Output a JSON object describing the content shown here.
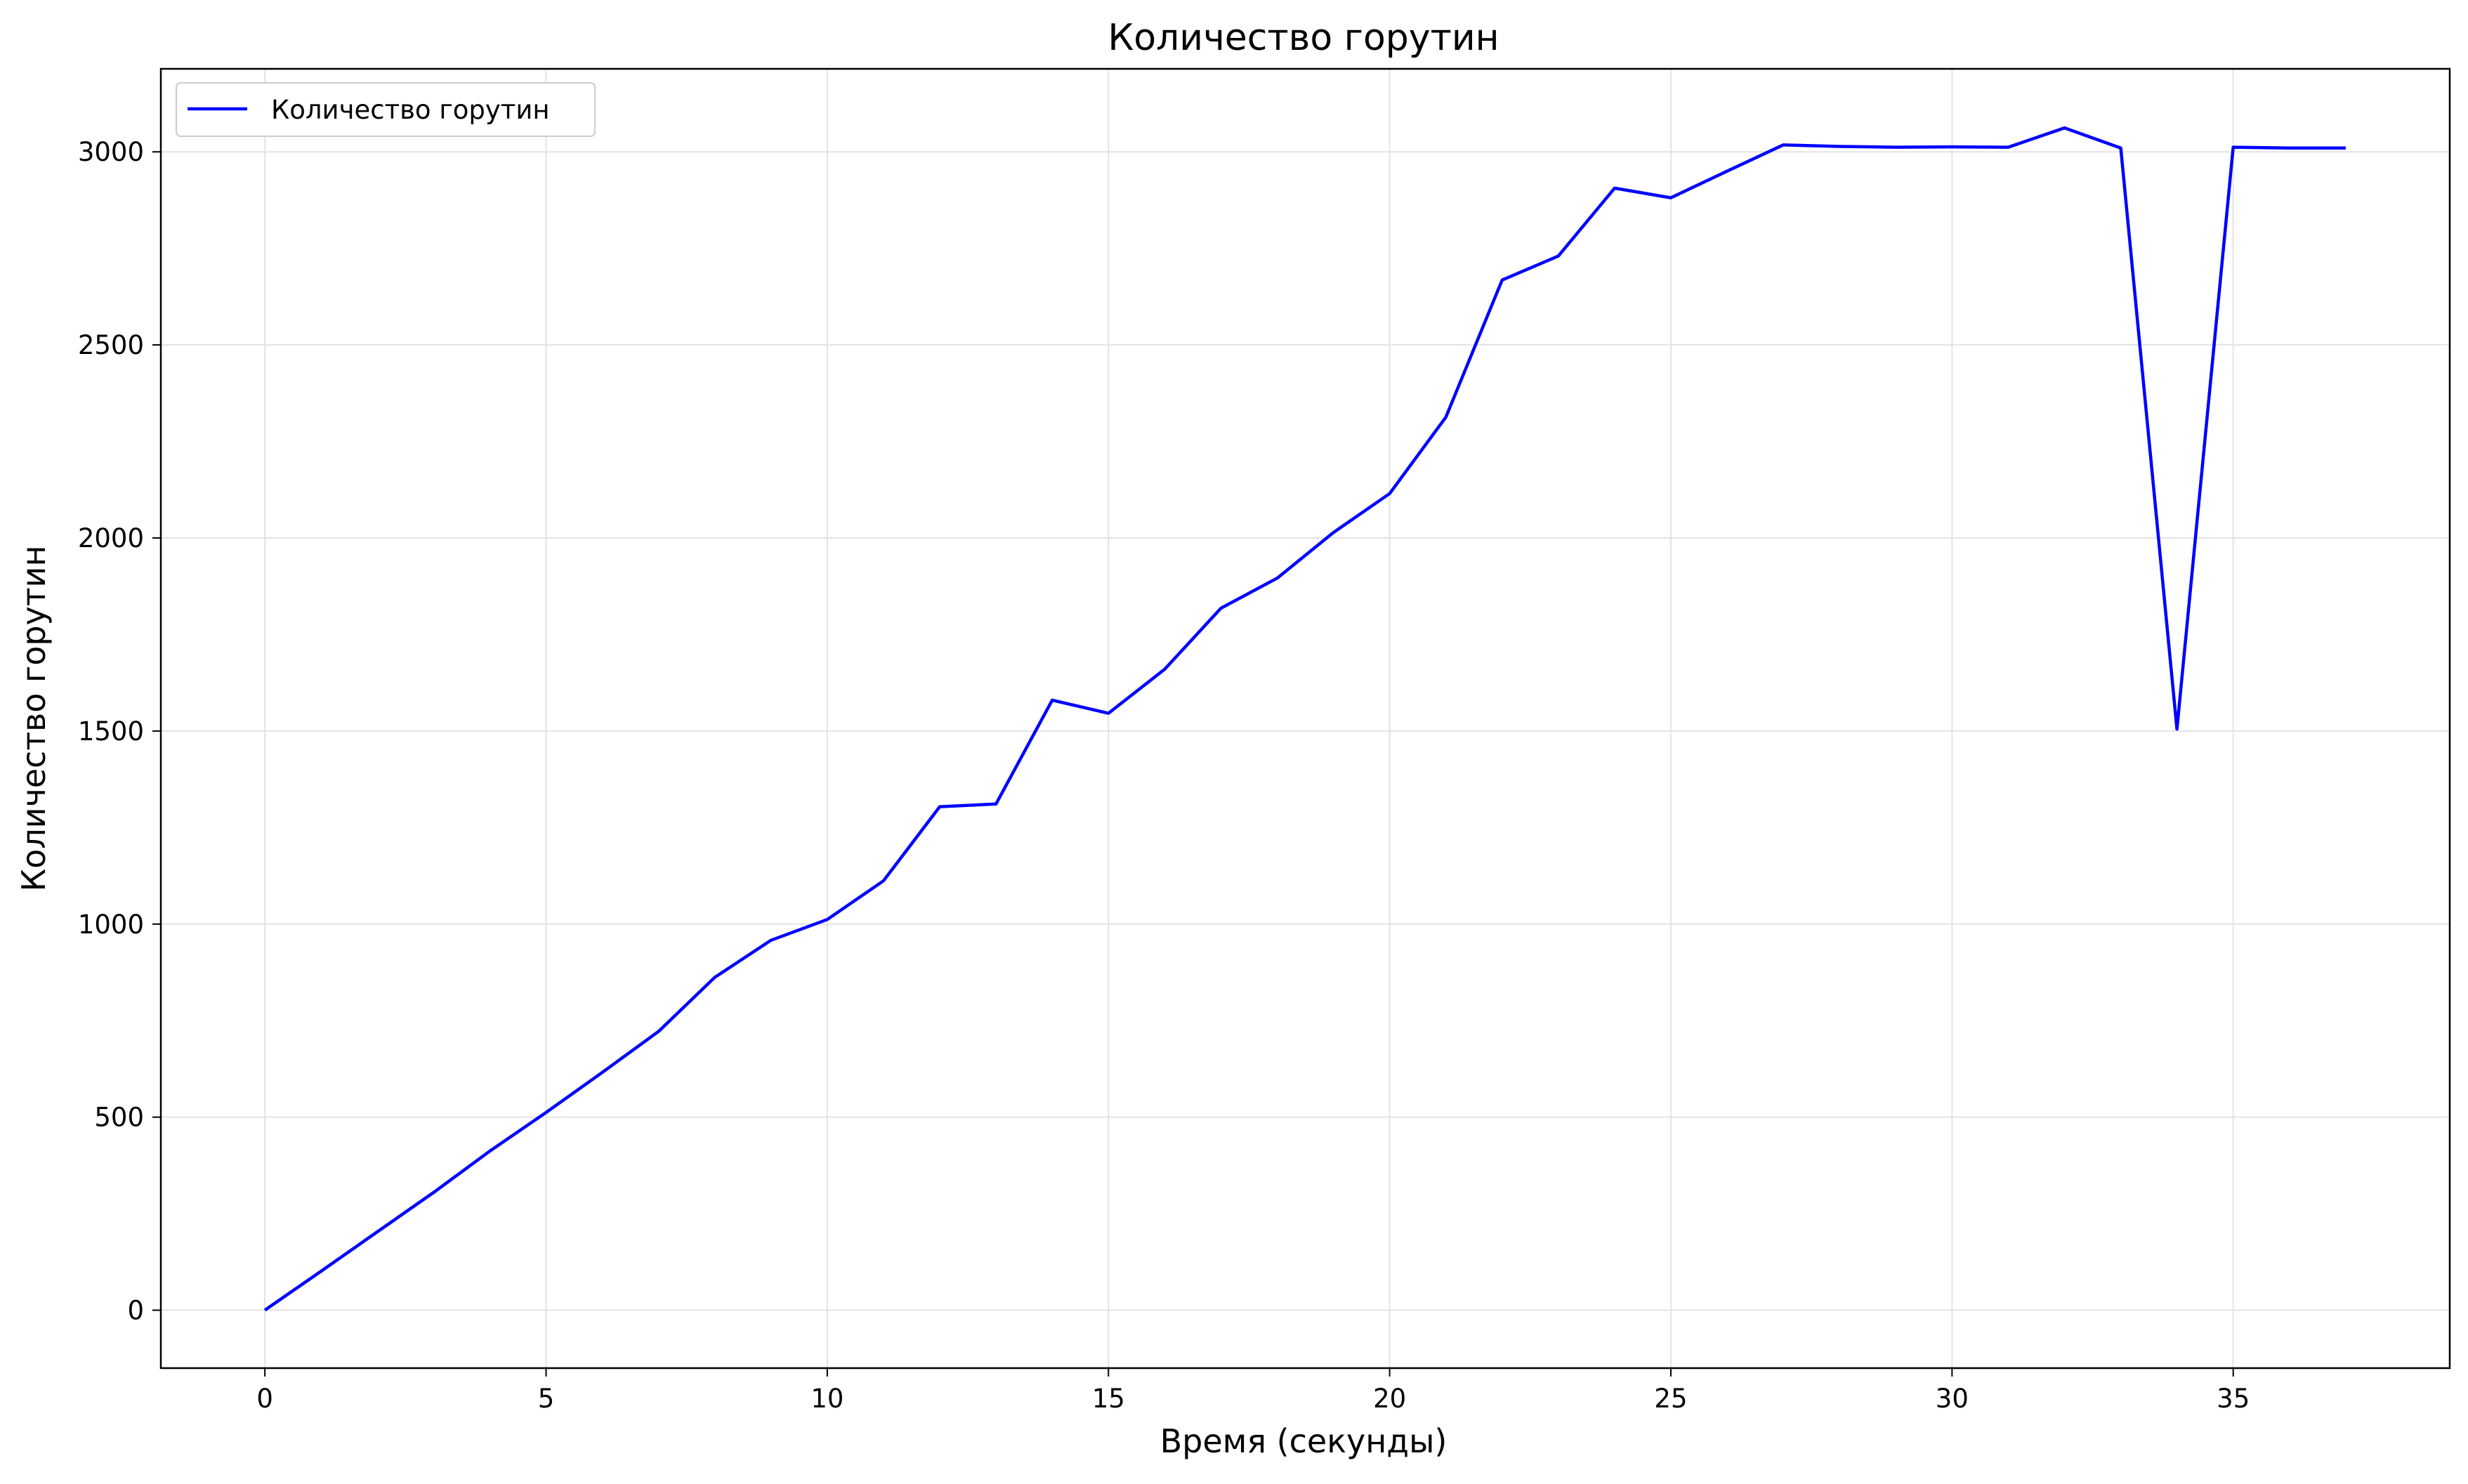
{
  "chart_data": {
    "type": "line",
    "title": "Количество горутин",
    "xlabel": "Время (секунды)",
    "ylabel": "Количество горутин",
    "xlim": [
      -1.85,
      38.85
    ],
    "ylim": [
      -150,
      3215
    ],
    "xticks": [
      0,
      5,
      10,
      15,
      20,
      25,
      30,
      35
    ],
    "yticks": [
      0,
      500,
      1000,
      1500,
      2000,
      2500,
      3000
    ],
    "grid": true,
    "legend": {
      "position": "top-left",
      "entries": [
        "Количество горутин"
      ]
    },
    "series": [
      {
        "name": "Количество горутин",
        "color": "#0000ff",
        "x": [
          0,
          1,
          2,
          3,
          4,
          5,
          6,
          7,
          8,
          9,
          10,
          11,
          12,
          13,
          14,
          15,
          16,
          17,
          18,
          19,
          20,
          21,
          22,
          23,
          24,
          25,
          26,
          27,
          28,
          29,
          30,
          31,
          32,
          33,
          34,
          35,
          36,
          37
        ],
        "y": [
          0,
          101,
          203,
          305,
          412,
          512,
          616,
          722,
          862,
          958,
          1012,
          1112,
          1304,
          1311,
          1580,
          1546,
          1660,
          1818,
          1896,
          2014,
          2115,
          2313,
          2668,
          2730,
          2906,
          2881,
          2950,
          3018,
          3014,
          3012,
          3013,
          3012,
          3062,
          3010,
          1505,
          3012,
          3010,
          3010
        ]
      }
    ]
  }
}
